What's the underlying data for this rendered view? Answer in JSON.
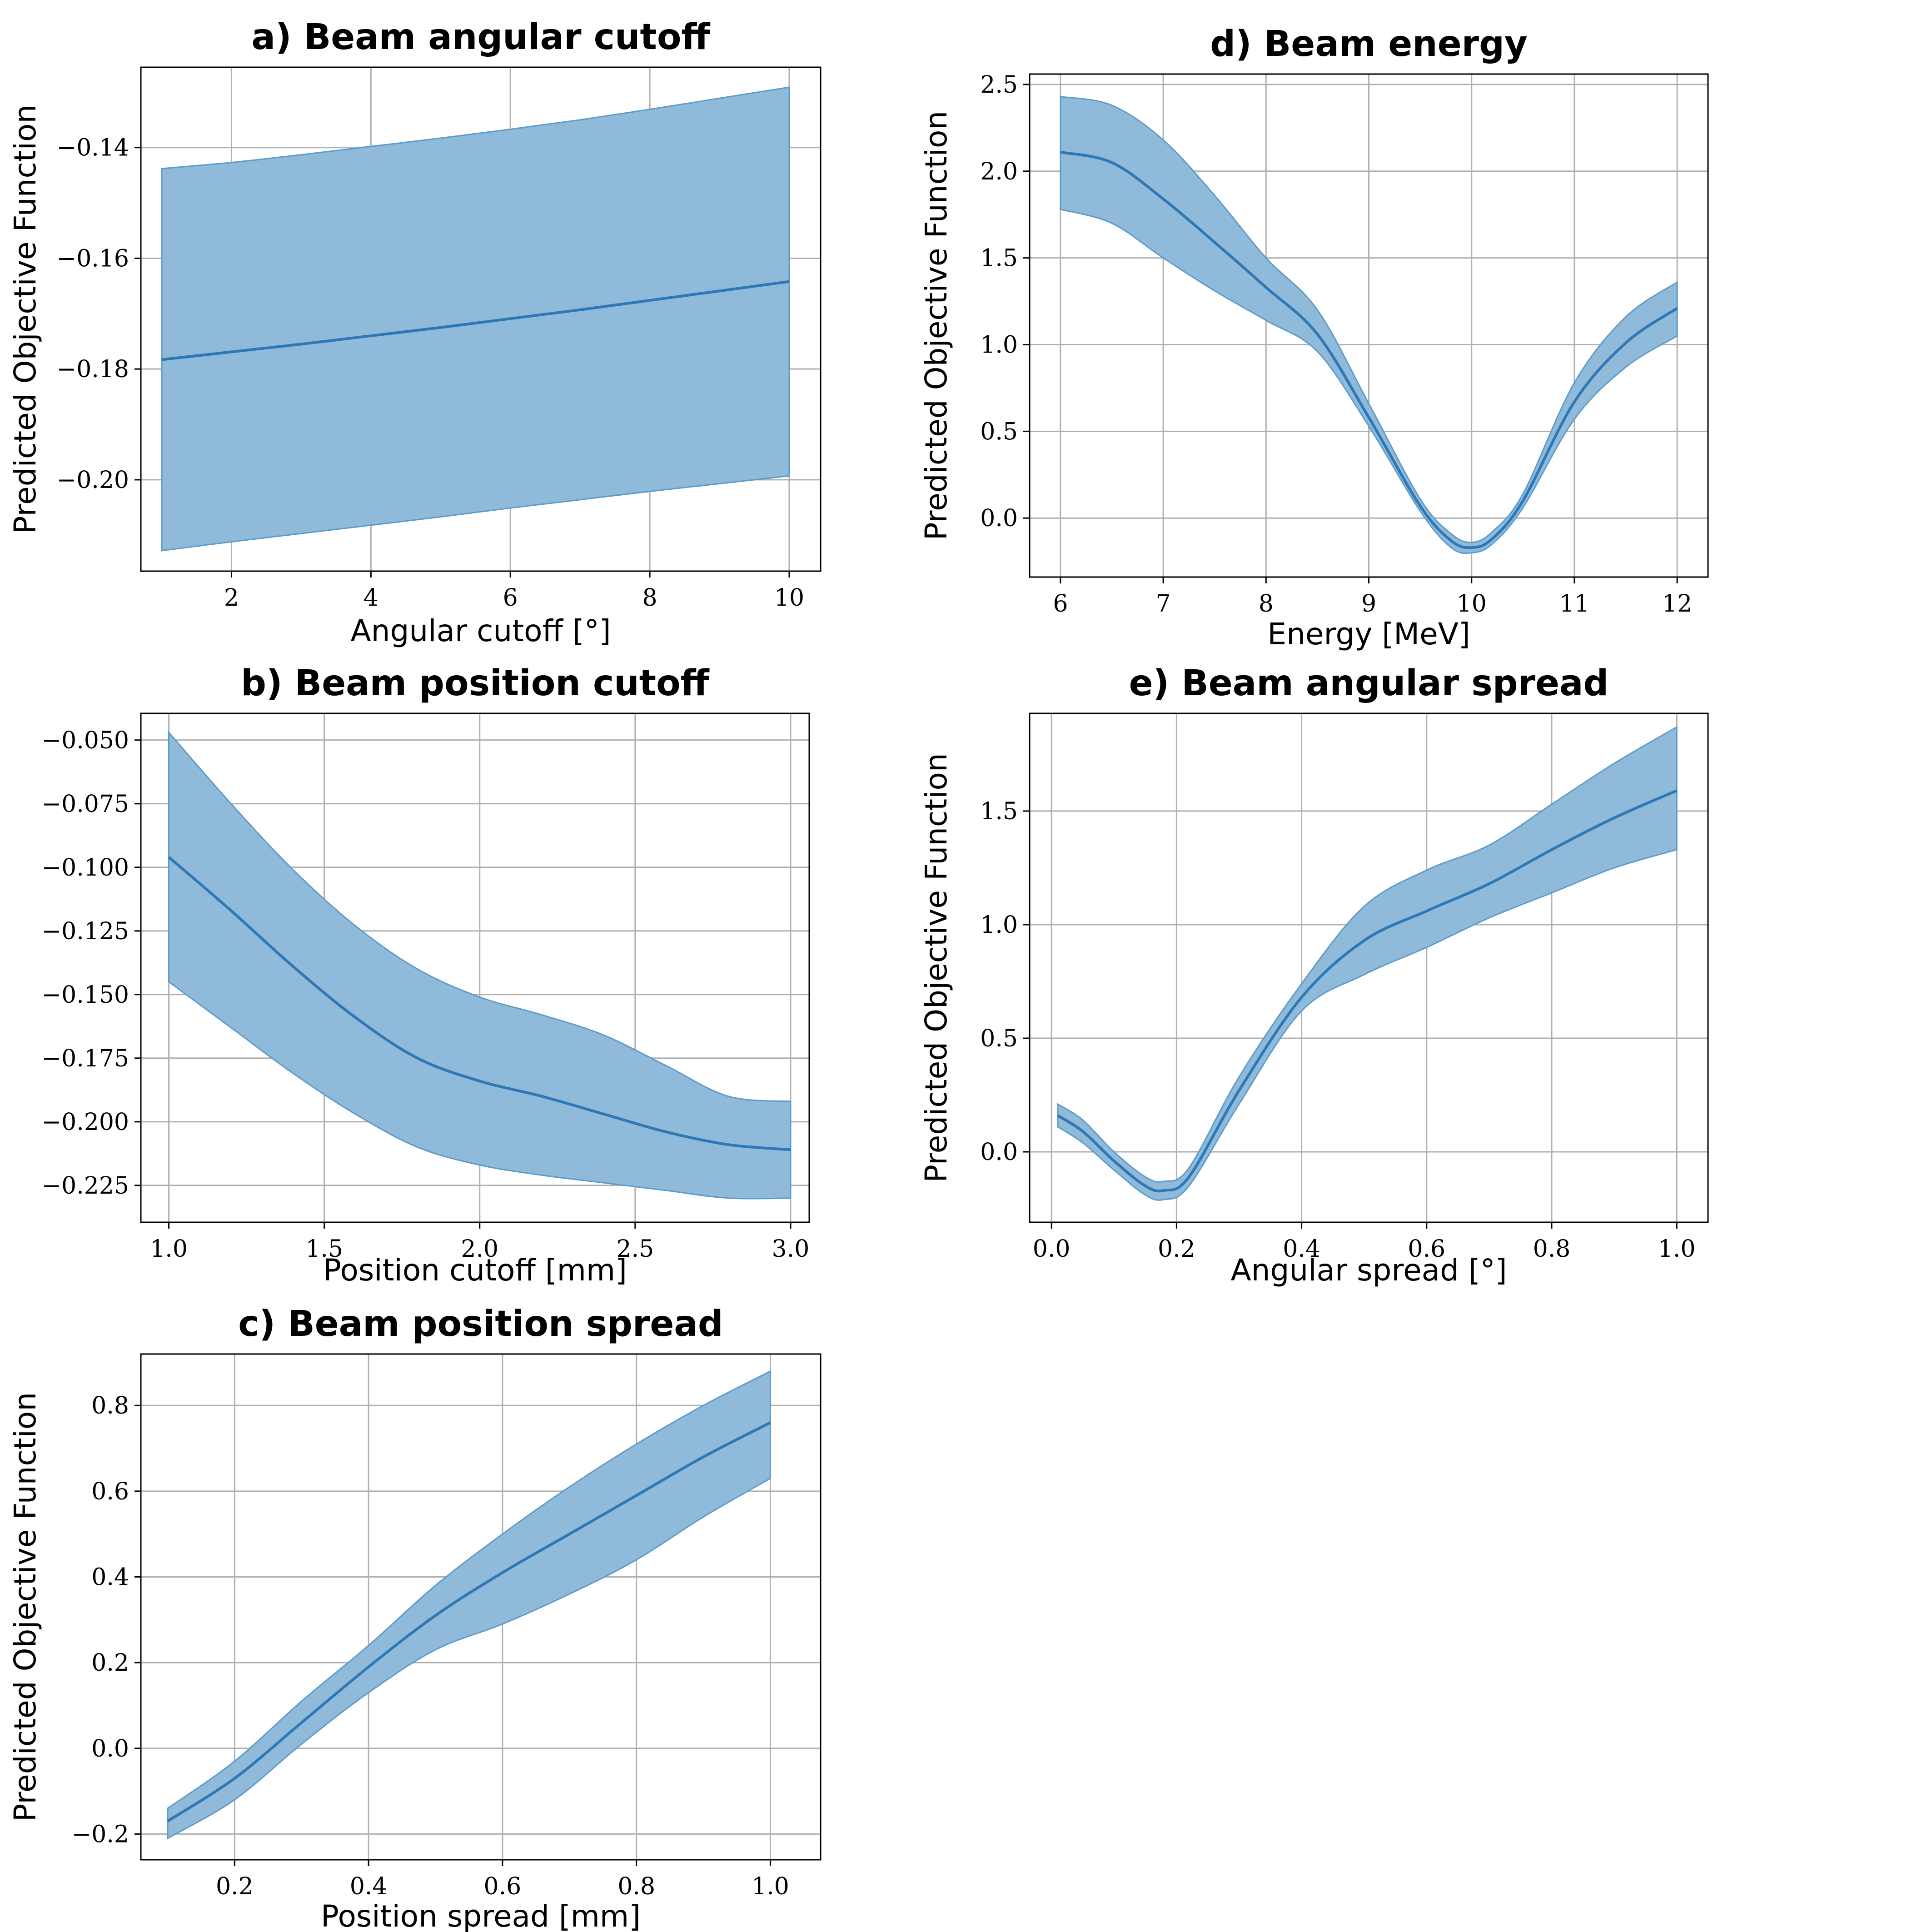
{
  "colors": {
    "band": "#8fbad9",
    "band_edge": "#5d9bcb",
    "line": "#2e78b7",
    "grid": "#b0b0b0",
    "axis": "#000000"
  },
  "chart_data": [
    {
      "id": "a",
      "type": "line",
      "title": "a) Beam angular cutoff",
      "xlabel": "Angular cutoff [°]",
      "ylabel": "Predicted Objective Function",
      "xlim": [
        0.7,
        10.45
      ],
      "ylim": [
        -0.2165,
        -0.1255
      ],
      "xticks": [
        2,
        4,
        6,
        8,
        10
      ],
      "yticks": [
        -0.2,
        -0.18,
        -0.16,
        -0.14
      ],
      "xtick_labels": [
        "2",
        "4",
        "6",
        "8",
        "10"
      ],
      "ytick_labels": [
        "−0.20",
        "−0.18",
        "−0.16",
        "−0.14"
      ],
      "grid": true,
      "series": [
        {
          "x": [
            1,
            2,
            3,
            4,
            5,
            6,
            7,
            8,
            9,
            10
          ],
          "y": [
            -0.1783,
            -0.1769,
            -0.1755,
            -0.174,
            -0.1725,
            -0.1709,
            -0.1693,
            -0.1676,
            -0.1659,
            -0.1642
          ],
          "lower": [
            -0.2128,
            -0.2112,
            -0.2097,
            -0.2082,
            -0.2067,
            -0.2051,
            -0.2036,
            -0.2021,
            -0.2007,
            -0.1993
          ],
          "upper": [
            -0.1438,
            -0.1427,
            -0.1413,
            -0.1398,
            -0.1383,
            -0.1367,
            -0.135,
            -0.1331,
            -0.1311,
            -0.1291
          ]
        }
      ]
    },
    {
      "id": "b",
      "type": "line",
      "title": "b) Beam position cutoff",
      "xlabel": "Position cutoff [mm]",
      "ylabel": "",
      "xlim": [
        0.91,
        3.06
      ],
      "ylim": [
        -0.2395,
        -0.0395
      ],
      "xticks": [
        1.0,
        1.5,
        2.0,
        2.5,
        3.0
      ],
      "yticks": [
        -0.225,
        -0.2,
        -0.175,
        -0.15,
        -0.125,
        -0.1,
        -0.075,
        -0.05
      ],
      "xtick_labels": [
        "1.0",
        "1.5",
        "2.0",
        "2.5",
        "3.0"
      ],
      "ytick_labels": [
        "−0.225",
        "−0.200",
        "−0.175",
        "−0.150",
        "−0.125",
        "−0.100",
        "−0.075",
        "−0.050"
      ],
      "grid": true,
      "series": [
        {
          "x": [
            1.0,
            1.2,
            1.4,
            1.6,
            1.8,
            2.0,
            2.2,
            2.4,
            2.6,
            2.8,
            3.0
          ],
          "y": [
            -0.096,
            -0.117,
            -0.139,
            -0.159,
            -0.175,
            -0.184,
            -0.19,
            -0.197,
            -0.204,
            -0.209,
            -0.211
          ],
          "lower": [
            -0.145,
            -0.163,
            -0.181,
            -0.197,
            -0.21,
            -0.217,
            -0.221,
            -0.224,
            -0.227,
            -0.23,
            -0.23
          ],
          "upper": [
            -0.047,
            -0.075,
            -0.101,
            -0.123,
            -0.14,
            -0.151,
            -0.158,
            -0.166,
            -0.178,
            -0.19,
            -0.192
          ]
        }
      ]
    },
    {
      "id": "c",
      "type": "line",
      "title": "c) Beam position spread",
      "xlabel": "Position spread [mm]",
      "ylabel": "Predicted Objective Function",
      "xlim": [
        0.06,
        1.075
      ],
      "ylim": [
        -0.26,
        0.92
      ],
      "xticks": [
        0.2,
        0.4,
        0.6,
        0.8,
        1.0
      ],
      "yticks": [
        -0.2,
        0.0,
        0.2,
        0.4,
        0.6,
        0.8
      ],
      "xtick_labels": [
        "0.2",
        "0.4",
        "0.6",
        "0.8",
        "1.0"
      ],
      "ytick_labels": [
        "−0.2",
        "0.0",
        "0.2",
        "0.4",
        "0.6",
        "0.8"
      ],
      "grid": true,
      "series": [
        {
          "x": [
            0.1,
            0.2,
            0.3,
            0.4,
            0.5,
            0.6,
            0.7,
            0.8,
            0.9,
            1.0
          ],
          "y": [
            -0.17,
            -0.07,
            0.06,
            0.19,
            0.31,
            0.41,
            0.5,
            0.59,
            0.68,
            0.76
          ],
          "lower": [
            -0.21,
            -0.12,
            0.01,
            0.13,
            0.23,
            0.29,
            0.36,
            0.44,
            0.54,
            0.63
          ],
          "upper": [
            -0.14,
            -0.03,
            0.11,
            0.24,
            0.38,
            0.5,
            0.61,
            0.71,
            0.8,
            0.88
          ]
        }
      ]
    },
    {
      "id": "d",
      "type": "line",
      "title": "d) Beam energy",
      "xlabel": "Energy [MeV]",
      "ylabel": "Predicted Objective Function",
      "xlim": [
        5.7,
        12.3
      ],
      "ylim": [
        -0.34,
        2.56
      ],
      "xticks": [
        6,
        7,
        8,
        9,
        10,
        11,
        12
      ],
      "yticks": [
        0.0,
        0.5,
        1.0,
        1.5,
        2.0,
        2.5
      ],
      "xtick_labels": [
        "6",
        "7",
        "8",
        "9",
        "10",
        "11",
        "12"
      ],
      "ytick_labels": [
        "0.0",
        "0.5",
        "1.0",
        "1.5",
        "2.0",
        "2.5"
      ],
      "grid": true,
      "series": [
        {
          "x": [
            6.0,
            6.5,
            7.0,
            7.5,
            8.0,
            8.5,
            9.0,
            9.5,
            9.8,
            10.0,
            10.2,
            10.5,
            11.0,
            11.5,
            12.0
          ],
          "y": [
            2.11,
            2.05,
            1.84,
            1.59,
            1.33,
            1.06,
            0.58,
            0.07,
            -0.13,
            -0.17,
            -0.12,
            0.1,
            0.67,
            1.01,
            1.21
          ],
          "lower": [
            1.78,
            1.7,
            1.5,
            1.31,
            1.14,
            0.96,
            0.53,
            0.04,
            -0.17,
            -0.2,
            -0.15,
            0.06,
            0.57,
            0.87,
            1.05
          ],
          "upper": [
            2.43,
            2.38,
            2.18,
            1.86,
            1.5,
            1.2,
            0.66,
            0.11,
            -0.09,
            -0.14,
            -0.08,
            0.14,
            0.78,
            1.16,
            1.36
          ]
        }
      ]
    },
    {
      "id": "e",
      "type": "line",
      "title": "e) Beam angular spread",
      "xlabel": "Angular spread [°]",
      "ylabel": "Predicted Objective Function",
      "xlim": [
        -0.035,
        1.05
      ],
      "ylim": [
        -0.31,
        1.93
      ],
      "xticks": [
        0.0,
        0.2,
        0.4,
        0.6,
        0.8,
        1.0
      ],
      "yticks": [
        0.0,
        0.5,
        1.0,
        1.5
      ],
      "xtick_labels": [
        "0.0",
        "0.2",
        "0.4",
        "0.6",
        "0.8",
        "1.0"
      ],
      "ytick_labels": [
        "0.0",
        "0.5",
        "1.0",
        "1.5"
      ],
      "grid": true,
      "series": [
        {
          "x": [
            0.01,
            0.05,
            0.1,
            0.15,
            0.18,
            0.22,
            0.3,
            0.4,
            0.5,
            0.6,
            0.7,
            0.8,
            0.9,
            1.0
          ],
          "y": [
            0.16,
            0.09,
            -0.04,
            -0.15,
            -0.17,
            -0.11,
            0.27,
            0.68,
            0.93,
            1.06,
            1.18,
            1.33,
            1.47,
            1.59
          ],
          "lower": [
            0.11,
            0.04,
            -0.08,
            -0.19,
            -0.21,
            -0.15,
            0.21,
            0.62,
            0.78,
            0.9,
            1.03,
            1.14,
            1.25,
            1.33
          ],
          "upper": [
            0.21,
            0.14,
            0.0,
            -0.11,
            -0.13,
            -0.07,
            0.33,
            0.74,
            1.08,
            1.24,
            1.35,
            1.53,
            1.71,
            1.87
          ]
        }
      ]
    }
  ]
}
